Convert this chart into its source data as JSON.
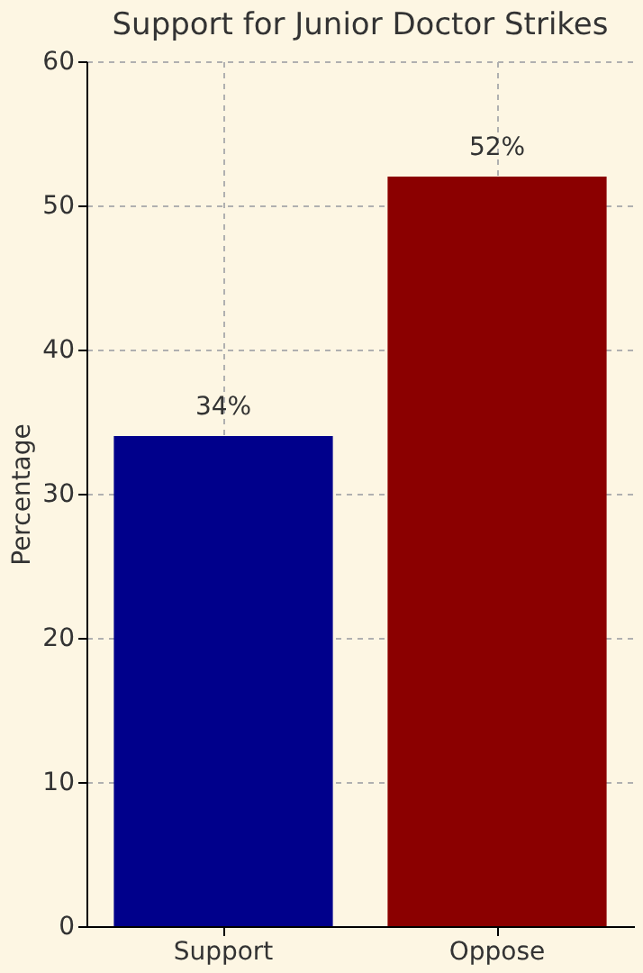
{
  "chart_data": {
    "type": "bar",
    "title": "Support for Junior Doctor Strikes",
    "ylabel": "Percentage",
    "categories": [
      "Support",
      "Oppose"
    ],
    "values": [
      34,
      52
    ],
    "colors": [
      "#00008b",
      "#8b0000"
    ],
    "value_labels": [
      "34%",
      "52%"
    ],
    "ylim": [
      0,
      60
    ],
    "yticks": [
      0,
      10,
      20,
      30,
      40,
      50,
      60
    ],
    "grid": true
  }
}
